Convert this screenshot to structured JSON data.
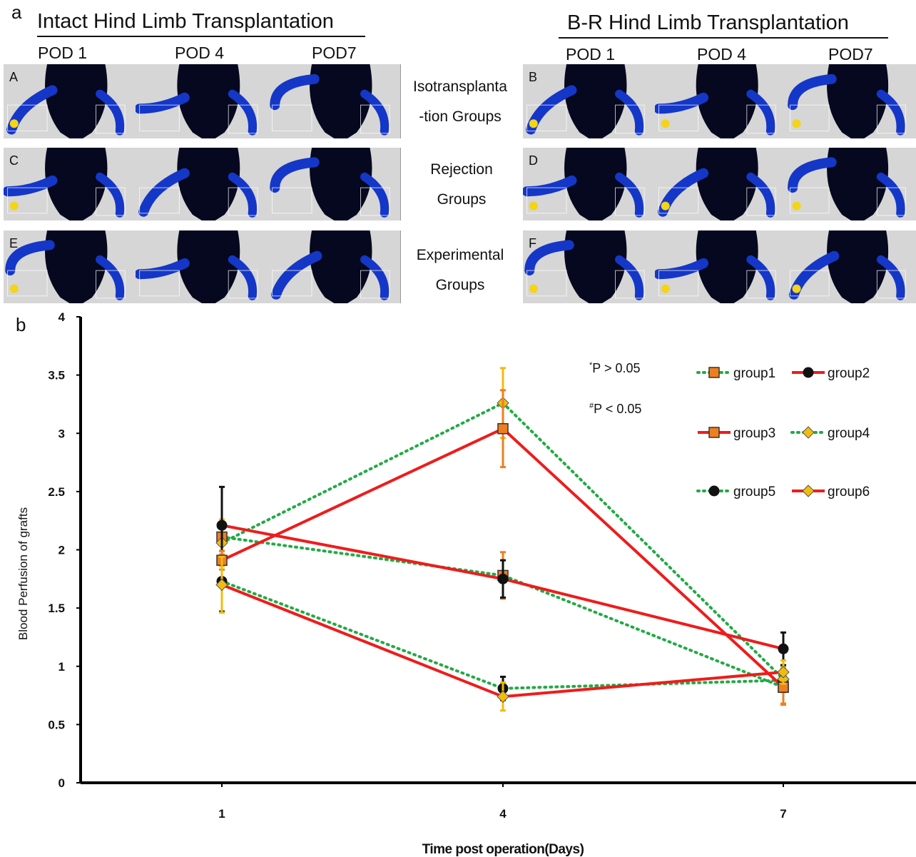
{
  "panel_a": {
    "letter": "a",
    "left_title": "Intact Hind Limb Transplantation",
    "right_title": "B-R Hind Limb Transplantation",
    "pod_labels": [
      "POD 1",
      "POD 4",
      "POD7"
    ],
    "rows": [
      {
        "label_lines": [
          "Isotransplanta",
          "-tion Groups"
        ],
        "left_letter": "A",
        "right_letter": "B"
      },
      {
        "label_lines": [
          "Rejection",
          "Groups"
        ],
        "left_letter": "C",
        "right_letter": "D"
      },
      {
        "label_lines": [
          "Experimental",
          "Groups"
        ],
        "left_letter": "E",
        "right_letter": "F"
      }
    ]
  },
  "colors": {
    "tile_bg": "#d6d6d6",
    "body_dark": "#05081e",
    "perfusion_blue": "#1437c8",
    "perfusion_yellow": "#f3d418",
    "red": "#ee1c1c",
    "green": "#22aa44",
    "orange": "#ee7f1f",
    "gold": "#f0bc10"
  },
  "chart_data": {
    "type": "line",
    "panel_letter": "b",
    "xlabel": "Time post operation(Days)",
    "ylabel": "Blood Perfusion of grafts",
    "x": [
      1,
      4,
      7
    ],
    "ylim": [
      0,
      4
    ],
    "yticks": [
      "0",
      "0.5",
      "1",
      "1.5",
      "2",
      "2.5",
      "3",
      "3.5",
      "4"
    ],
    "xticks": [
      "1",
      "4",
      "7"
    ],
    "annotations": [
      "*P > 0.05",
      "#P < 0.05"
    ],
    "legend_position": "top-right",
    "series": [
      {
        "name": "group1",
        "values": [
          2.11,
          1.78,
          0.82
        ],
        "err": [
          0.15,
          0.2,
          0.15
        ],
        "line": "dotted-green",
        "marker": "square-orange"
      },
      {
        "name": "group2",
        "values": [
          2.21,
          1.75,
          1.15
        ],
        "err": [
          0.33,
          0.16,
          0.14
        ],
        "line": "solid-red",
        "marker": "circle-black"
      },
      {
        "name": "group3",
        "values": [
          1.91,
          3.04,
          0.82
        ],
        "err": [
          0.08,
          0.33,
          0.14
        ],
        "line": "solid-red",
        "marker": "square-orange"
      },
      {
        "name": "group4",
        "values": [
          2.06,
          3.26,
          0.89
        ],
        "err": [
          0.2,
          0.3,
          0.1
        ],
        "line": "dotted-green",
        "marker": "diamond-gold"
      },
      {
        "name": "group5",
        "values": [
          1.73,
          0.81,
          0.88
        ],
        "err": [
          0.26,
          0.1,
          0.1
        ],
        "line": "dotted-green",
        "marker": "circle-black"
      },
      {
        "name": "group6",
        "values": [
          1.7,
          0.74,
          0.95
        ],
        "err": [
          0.24,
          0.12,
          0.1
        ],
        "line": "solid-red",
        "marker": "diamond-gold"
      }
    ]
  }
}
